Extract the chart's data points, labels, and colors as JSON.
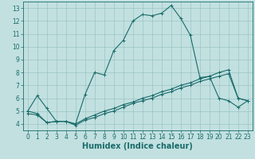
{
  "title": "",
  "xlabel": "Humidex (Indice chaleur)",
  "bg_color": "#c2e0e0",
  "grid_color": "#93bfbf",
  "line_color": "#1a6b6b",
  "xlim": [
    -0.5,
    23.5
  ],
  "ylim": [
    3.5,
    13.5
  ],
  "xticks": [
    0,
    1,
    2,
    3,
    4,
    5,
    6,
    7,
    8,
    9,
    10,
    11,
    12,
    13,
    14,
    15,
    16,
    17,
    18,
    19,
    20,
    21,
    22,
    23
  ],
  "yticks": [
    4,
    5,
    6,
    7,
    8,
    9,
    10,
    11,
    12,
    13
  ],
  "line1_x": [
    0,
    1,
    2,
    3,
    4,
    5,
    6,
    7,
    8,
    9,
    10,
    11,
    12,
    13,
    14,
    15,
    16,
    17,
    18,
    19,
    20,
    21,
    22,
    23
  ],
  "line1_y": [
    5.0,
    6.2,
    5.2,
    4.2,
    4.2,
    4.0,
    6.3,
    8.0,
    7.8,
    9.7,
    10.5,
    12.0,
    12.5,
    12.4,
    12.6,
    13.2,
    12.2,
    10.9,
    7.6,
    7.7,
    6.0,
    5.8,
    5.3,
    5.8
  ],
  "line2_x": [
    0,
    1,
    2,
    3,
    4,
    5,
    6,
    7,
    8,
    9,
    10,
    11,
    12,
    13,
    14,
    15,
    16,
    17,
    18,
    19,
    20,
    21,
    22,
    23
  ],
  "line2_y": [
    4.8,
    4.7,
    4.1,
    4.2,
    4.2,
    3.9,
    4.3,
    4.5,
    4.8,
    5.0,
    5.3,
    5.6,
    5.8,
    6.0,
    6.3,
    6.5,
    6.8,
    7.0,
    7.3,
    7.5,
    7.7,
    7.9,
    6.0,
    5.8
  ],
  "line3_x": [
    0,
    1,
    2,
    3,
    4,
    5,
    6,
    7,
    8,
    9,
    10,
    11,
    12,
    13,
    14,
    15,
    16,
    17,
    18,
    19,
    20,
    21,
    22,
    23
  ],
  "line3_y": [
    5.0,
    4.8,
    4.1,
    4.2,
    4.2,
    4.0,
    4.4,
    4.7,
    5.0,
    5.2,
    5.5,
    5.7,
    6.0,
    6.2,
    6.5,
    6.7,
    7.0,
    7.2,
    7.5,
    7.7,
    8.0,
    8.2,
    6.0,
    5.8
  ],
  "xlabel_fontsize": 7,
  "tick_fontsize": 5.5,
  "lw": 0.8,
  "ms": 2.5
}
